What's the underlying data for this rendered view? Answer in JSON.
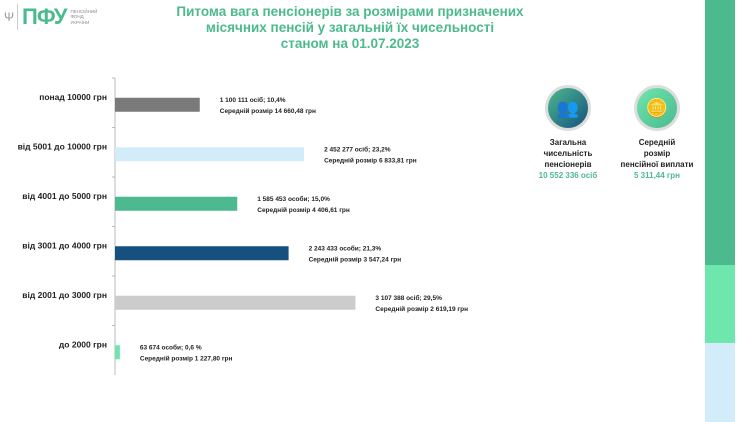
{
  "logo": {
    "text": "ПФУ",
    "subtitle": [
      "Пенсійний",
      "фонд",
      "України"
    ]
  },
  "title": [
    "Питома вага пенсіонерів за розмірами призначених",
    "місячних пенсій у загальній їх чисельності",
    "станом на 01.07.2023"
  ],
  "kpis": [
    {
      "icon": "people-icon",
      "label": [
        "Загальна",
        "чисельність",
        "пенсіонерів"
      ],
      "value": "10 552 336 осіб"
    },
    {
      "icon": "coins-icon",
      "label": [
        "Середній",
        "розмір",
        "пенсійної виплати"
      ],
      "value": "5 311,44 грн"
    }
  ],
  "colors": {
    "accent": "#4cb98e",
    "strip": [
      "#4cb98e",
      "#6ee6ad",
      "#d3ecfa"
    ]
  },
  "chart_data": {
    "type": "bar",
    "orientation": "horizontal",
    "grid": false,
    "categories": [
      "понад 10000 грн",
      "від 5001 до 10000 грн",
      "від 4001 до 5000 грн",
      "від 3001 до 4000 грн",
      "від 2001 до 3000 грн",
      "до 2000 грн"
    ],
    "values": [
      10.4,
      23.2,
      15.0,
      21.3,
      29.5,
      0.6
    ],
    "bar_colors": [
      "#7a7a7a",
      "#d3ecfa",
      "#4cb98e",
      "#16507f",
      "#cccccc",
      "#6ee6ad"
    ],
    "labels": [
      [
        "1 100 111 осіб;  10,4%",
        "Середній розмір 14 660,48 грн"
      ],
      [
        "2 452 277 осіб; 23,2%",
        "Середній розмір 6 833,81 грн"
      ],
      [
        "1 585 453 особи; 15,0%",
        "Середній розмір 4 406,61 грн"
      ],
      [
        "2 243 433 особи; 21,3%",
        "Середній розмір 3 547,24 грн"
      ],
      [
        "3 107 388 осіб; 29,5%",
        "Середній розмір 2 619,19 грн"
      ],
      [
        "63 674 особи; 0,6 %",
        "Середній розмір 1 227,80 грн"
      ]
    ],
    "xlim": [
      0,
      35
    ]
  }
}
